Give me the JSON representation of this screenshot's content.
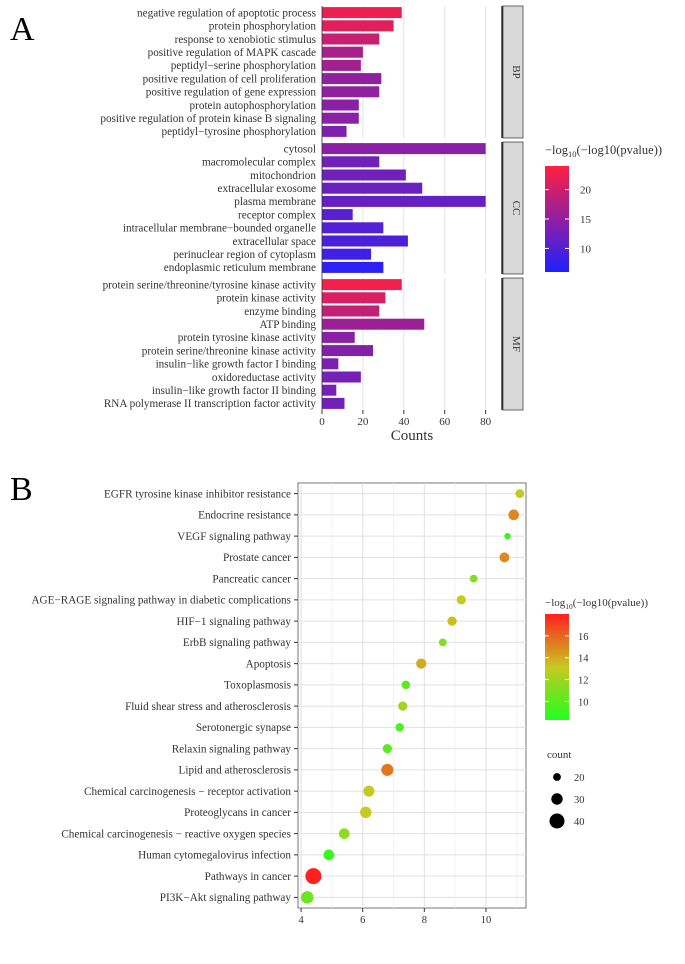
{
  "panel_labels": {
    "a": "A",
    "b": "B"
  },
  "chart_data": [
    {
      "type": "bar",
      "orientation": "horizontal",
      "panel": "A",
      "xlabel": "Counts",
      "xlim": [
        0,
        88
      ],
      "xticks": [
        0,
        20,
        40,
        60,
        80
      ],
      "legend": {
        "title_prefix": "−log",
        "title_sub": "10",
        "title_suffix": "(−log10(pvalue))",
        "range": [
          6,
          24
        ],
        "ticks": [
          10,
          15,
          20
        ],
        "colors": [
          "#2020ff",
          "#ff2040"
        ]
      },
      "facets": [
        {
          "name": "BP",
          "items": [
            {
              "label": "negative regulation of apoptotic process",
              "value": 39,
              "color": 22.5
            },
            {
              "label": "protein phosphorylation",
              "value": 35,
              "color": 21.5
            },
            {
              "label": "response to xenobiotic stimulus",
              "value": 28,
              "color": 19.5
            },
            {
              "label": "positive regulation of MAPK cascade",
              "value": 20,
              "color": 17
            },
            {
              "label": "peptidyl−serine phosphorylation",
              "value": 19,
              "color": 16.5
            },
            {
              "label": "positive regulation of cell proliferation",
              "value": 29,
              "color": 15
            },
            {
              "label": "positive regulation of gene expression",
              "value": 28,
              "color": 15
            },
            {
              "label": "protein autophosphorylation",
              "value": 18,
              "color": 14.5
            },
            {
              "label": "positive regulation of protein kinase B signaling",
              "value": 18,
              "color": 14.5
            },
            {
              "label": "peptidyl−tyrosine phosphorylation",
              "value": 12,
              "color": 13.5
            }
          ]
        },
        {
          "name": "CC",
          "items": [
            {
              "label": "cytosol",
              "value": 80,
              "color": 14.5
            },
            {
              "label": "macromolecular complex",
              "value": 28,
              "color": 12.5
            },
            {
              "label": "mitochondrion",
              "value": 41,
              "color": 12.5
            },
            {
              "label": "extracellular exosome",
              "value": 49,
              "color": 12
            },
            {
              "label": "plasma membrane",
              "value": 80,
              "color": 11.5
            },
            {
              "label": "receptor complex",
              "value": 15,
              "color": 10.5
            },
            {
              "label": "intracellular membrane−bounded organelle",
              "value": 30,
              "color": 10
            },
            {
              "label": "extracellular space",
              "value": 42,
              "color": 9.5
            },
            {
              "label": "perinuclear region of cytoplasm",
              "value": 24,
              "color": 8.5
            },
            {
              "label": "endoplasmic reticulum membrane",
              "value": 30,
              "color": 7
            }
          ]
        },
        {
          "name": "MF",
          "items": [
            {
              "label": "protein serine/threonine/tyrosine kinase activity",
              "value": 39,
              "color": 23
            },
            {
              "label": "protein kinase activity",
              "value": 31,
              "color": 21
            },
            {
              "label": "enzyme binding",
              "value": 28,
              "color": 19
            },
            {
              "label": "ATP binding",
              "value": 50,
              "color": 16
            },
            {
              "label": "protein tyrosine kinase activity",
              "value": 16,
              "color": 14.5
            },
            {
              "label": "protein serine/threonine kinase activity",
              "value": 25,
              "color": 14
            },
            {
              "label": "insulin−like growth factor I binding",
              "value": 8,
              "color": 13.5
            },
            {
              "label": "oxidoreductase activity",
              "value": 19,
              "color": 13
            },
            {
              "label": "insulin−like growth factor II binding",
              "value": 7,
              "color": 13
            },
            {
              "label": "RNA polymerase II transcription factor activity",
              "value": 11,
              "color": 12.5
            }
          ]
        }
      ]
    },
    {
      "type": "scatter",
      "panel": "B",
      "xlim": [
        3.9,
        11.3
      ],
      "xticks": [
        4,
        6,
        8,
        10
      ],
      "color_legend": {
        "title_prefix": "−log",
        "title_sub": "10",
        "title_suffix": "(−log10(pvalue))",
        "range": [
          8.3,
          18
        ],
        "ticks": [
          10,
          12,
          14,
          16
        ],
        "colors": [
          "#20ff20",
          "#ff2020"
        ]
      },
      "size_legend": {
        "title": "count",
        "values": [
          20,
          30,
          40
        ]
      },
      "points": [
        {
          "label": "EGFR tyrosine kinase inhibitor resistance",
          "x": 11.1,
          "count": 23,
          "color": 13
        },
        {
          "label": "Endocrine resistance",
          "x": 10.9,
          "count": 28,
          "color": 15
        },
        {
          "label": "VEGF signaling pathway",
          "x": 10.7,
          "count": 16,
          "color": 9
        },
        {
          "label": "Prostate cancer",
          "x": 10.6,
          "count": 26,
          "color": 15
        },
        {
          "label": "Pancreatic cancer",
          "x": 9.6,
          "count": 20,
          "color": 11
        },
        {
          "label": "AGE−RAGE signaling pathway in diabetic complications",
          "x": 9.2,
          "count": 24,
          "color": 13
        },
        {
          "label": "HIF−1 signaling pathway",
          "x": 8.9,
          "count": 24,
          "color": 13.5
        },
        {
          "label": "ErbB signaling pathway",
          "x": 8.6,
          "count": 20,
          "color": 11
        },
        {
          "label": "Apoptosis",
          "x": 7.9,
          "count": 27,
          "color": 14
        },
        {
          "label": "Toxoplasmosis",
          "x": 7.4,
          "count": 22,
          "color": 10
        },
        {
          "label": "Fluid shear stress and atherosclerosis",
          "x": 7.3,
          "count": 24,
          "color": 12
        },
        {
          "label": "Serotonergic synapse",
          "x": 7.2,
          "count": 22,
          "color": 9.5
        },
        {
          "label": "Relaxin signaling pathway",
          "x": 6.8,
          "count": 24,
          "color": 10
        },
        {
          "label": "Lipid and atherosclerosis",
          "x": 6.8,
          "count": 32,
          "color": 15.5
        },
        {
          "label": "Chemical carcinogenesis − receptor activation",
          "x": 6.2,
          "count": 29,
          "color": 13
        },
        {
          "label": "Proteoglycans in cancer",
          "x": 6.1,
          "count": 30,
          "color": 13
        },
        {
          "label": "Chemical carcinogenesis − reactive oxygen species",
          "x": 5.4,
          "count": 28,
          "color": 11.5
        },
        {
          "label": "Human cytomegalovirus infection",
          "x": 4.9,
          "count": 28,
          "color": 9
        },
        {
          "label": "Pathways in cancer",
          "x": 4.4,
          "count": 43,
          "color": 18
        },
        {
          "label": "PI3K−Akt signaling pathway",
          "x": 4.2,
          "count": 33,
          "color": 10.5
        }
      ]
    }
  ]
}
